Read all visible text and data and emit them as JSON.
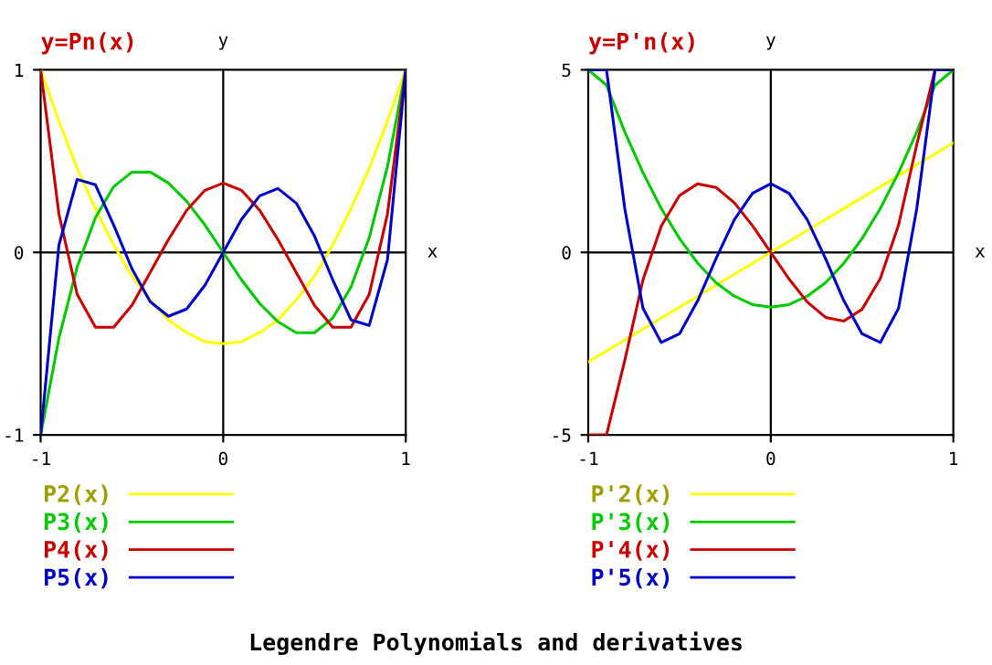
{
  "chart_data": [
    {
      "type": "line",
      "title": "y=Pn(x)",
      "x": [
        -1,
        -0.9,
        -0.8,
        -0.7,
        -0.6,
        -0.5,
        -0.4,
        -0.3,
        -0.2,
        -0.1,
        0,
        0.1,
        0.2,
        0.3,
        0.4,
        0.5,
        0.6,
        0.7,
        0.8,
        0.9,
        1
      ],
      "xlim": [
        -1,
        1
      ],
      "ylim": [
        -1,
        1
      ],
      "xticks": [
        -1,
        0,
        1
      ],
      "yticks": [
        -1,
        0,
        1
      ],
      "legend": "bottom",
      "grid": false,
      "ref_lines": [
        {
          "axis": "y",
          "value": 0,
          "label": "x",
          "color": "#000000"
        },
        {
          "axis": "x",
          "value": 0,
          "label": "y",
          "color": "#000000"
        }
      ],
      "series": [
        {
          "name": "P2(x)",
          "color": "#ffff00",
          "values": [
            1,
            0.72,
            0.46,
            0.24,
            0.04,
            -0.13,
            -0.26,
            -0.37,
            -0.44,
            -0.49,
            -0.5,
            -0.49,
            -0.44,
            -0.37,
            -0.26,
            -0.13,
            0.04,
            0.24,
            0.46,
            0.72,
            1
          ]
        },
        {
          "name": "P3(x)",
          "color": "#00cc00",
          "values": [
            -1,
            -0.47,
            -0.08,
            0.19,
            0.36,
            0.44,
            0.44,
            0.38,
            0.28,
            0.15,
            0,
            -0.15,
            -0.28,
            -0.38,
            -0.44,
            -0.44,
            -0.36,
            -0.19,
            0.08,
            0.47,
            1
          ]
        },
        {
          "name": "P4(x)",
          "color": "#cc0000",
          "values": [
            1,
            0.21,
            -0.23,
            -0.41,
            -0.41,
            -0.29,
            -0.11,
            0.07,
            0.23,
            0.34,
            0.38,
            0.34,
            0.23,
            0.07,
            -0.11,
            -0.29,
            -0.41,
            -0.41,
            -0.23,
            0.21,
            1
          ]
        },
        {
          "name": "P5(x)",
          "color": "#0000cc",
          "values": [
            -1,
            0.04,
            0.4,
            0.37,
            0.15,
            -0.09,
            -0.27,
            -0.35,
            -0.31,
            -0.18,
            0,
            0.18,
            0.31,
            0.35,
            0.27,
            0.09,
            -0.15,
            -0.37,
            -0.4,
            -0.04,
            1
          ]
        }
      ],
      "annotations": [
        "Legendre Polynomials and derivatives"
      ]
    },
    {
      "type": "line",
      "title": "y=P'n(x)",
      "x": [
        -1,
        -0.9,
        -0.8,
        -0.7,
        -0.6,
        -0.5,
        -0.4,
        -0.3,
        -0.2,
        -0.1,
        0,
        0.1,
        0.2,
        0.3,
        0.4,
        0.5,
        0.6,
        0.7,
        0.8,
        0.9,
        1
      ],
      "xlim": [
        -1,
        1
      ],
      "ylim": [
        -5,
        5
      ],
      "xticks": [
        -1,
        0,
        1
      ],
      "yticks": [
        -5,
        0,
        5
      ],
      "legend": "bottom",
      "grid": false,
      "ref_lines": [
        {
          "axis": "y",
          "value": 0,
          "label": "x",
          "color": "#000000"
        },
        {
          "axis": "x",
          "value": 0,
          "label": "y",
          "color": "#000000"
        }
      ],
      "series": [
        {
          "name": "P'2(x)",
          "color": "#ffff00",
          "values": [
            -3,
            -2.7,
            -2.4,
            -2.1,
            -1.8,
            -1.5,
            -1.2,
            -0.9,
            -0.6,
            -0.3,
            0,
            0.3,
            0.6,
            0.9,
            1.2,
            1.5,
            1.8,
            2.1,
            2.4,
            2.7,
            3
          ]
        },
        {
          "name": "P'3(x)",
          "color": "#00cc00",
          "values": [
            5,
            4.58,
            3.3,
            2.18,
            1.2,
            0.38,
            -0.3,
            -0.83,
            -1.2,
            -1.43,
            -1.5,
            -1.43,
            -1.2,
            -0.83,
            -0.3,
            0.38,
            1.2,
            2.18,
            3.3,
            4.58,
            5
          ]
        },
        {
          "name": "P'4(x)",
          "color": "#cc0000",
          "values": [
            -5,
            -5,
            -2.96,
            -0.75,
            0.72,
            1.56,
            1.88,
            1.78,
            1.36,
            0.73,
            0,
            -0.73,
            -1.36,
            -1.78,
            -1.88,
            -1.56,
            -0.72,
            0.75,
            2.96,
            5,
            null
          ]
        },
        {
          "name": "P'5(x)",
          "color": "#0000cc",
          "values": [
            5,
            5,
            1.2,
            -1.53,
            -2.47,
            -2.23,
            -1.32,
            -0.17,
            0.89,
            1.62,
            1.88,
            1.62,
            0.89,
            -0.17,
            -1.32,
            -2.23,
            -2.47,
            -1.53,
            1.2,
            5,
            5
          ]
        }
      ]
    }
  ]
}
